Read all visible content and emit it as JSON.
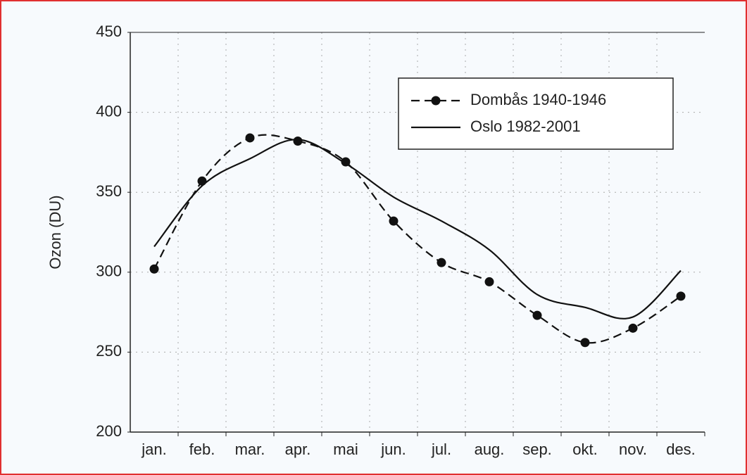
{
  "chart_data": {
    "type": "line",
    "ylabel": "Ozon (DU)",
    "categories": [
      "jan.",
      "feb.",
      "mar.",
      "apr.",
      "mai",
      "jun.",
      "jul.",
      "aug.",
      "sep.",
      "okt.",
      "nov.",
      "des."
    ],
    "series": [
      {
        "name": "Dombås 1940-1946",
        "color": "#111111",
        "dashed": true,
        "markers": true,
        "values": [
          302,
          357,
          384,
          382,
          369,
          332,
          306,
          294,
          273,
          256,
          265,
          285
        ]
      },
      {
        "name": "Oslo 1982-2001",
        "color": "#111111",
        "dashed": false,
        "markers": false,
        "values": [
          316,
          354,
          371,
          383,
          368,
          347,
          332,
          314,
          286,
          278,
          272,
          301
        ]
      }
    ],
    "ylim": [
      200,
      450
    ],
    "yticks": [
      200,
      250,
      300,
      350,
      400,
      450
    ],
    "grid": true,
    "legend": "upper right"
  }
}
